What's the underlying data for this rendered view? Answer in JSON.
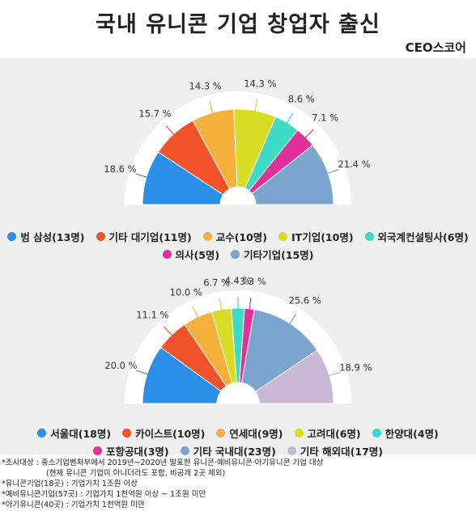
{
  "title": "국내 유니콘 기업 창업자 출신",
  "brand": "CEO스코어",
  "chart_data": [
    {
      "type": "pie",
      "subtype": "semicircle-donut",
      "categories": [
        "범 삼성(13명)",
        "기타 대기업(11명)",
        "교수(10명)",
        "IT기업(10명)",
        "외국계컨설팅사(6명)",
        "의사(5명)",
        "기타기업(15명)"
      ],
      "values": [
        18.6,
        15.7,
        14.3,
        14.3,
        8.6,
        7.1,
        21.4
      ],
      "value_labels": [
        "18.6 %",
        "15.7 %",
        "14.3 %",
        "14.3 %",
        "8.6 %",
        "7.1 %",
        "21.4 %"
      ],
      "colors": [
        "#2b8fe8",
        "#f2522a",
        "#f6b13c",
        "#d9dc25",
        "#3ddbc6",
        "#e0319a",
        "#7ba4cf"
      ],
      "legend_placement": "bottom"
    },
    {
      "type": "pie",
      "subtype": "semicircle-donut",
      "categories": [
        "서울대(18명)",
        "카이스트(10명)",
        "연세대(9명)",
        "고려대(6명)",
        "한양대(4명)",
        "포항공대(3명)",
        "기타 국내대(23명)",
        "기타 해외대(17명)"
      ],
      "values": [
        20.0,
        11.1,
        10.0,
        6.7,
        4.4,
        3.3,
        25.6,
        18.9
      ],
      "value_labels": [
        "20.0 %",
        "11.1 %",
        "10.0 %",
        "6.7 %",
        "4.4 %",
        "3.3 %",
        "25.6 %",
        "18.9 %"
      ],
      "colors": [
        "#2b8fe8",
        "#f2522a",
        "#f6b13c",
        "#d9dc25",
        "#3ddbc6",
        "#e0319a",
        "#7ba4cf",
        "#c8b8d4"
      ],
      "legend_placement": "bottom"
    }
  ],
  "notes": [
    "*조사대상 : 중소기업벤처부에서 2019년~2020년 발표한 유니콘·예비유니콘·아기유니콘 기업 대상",
    "(현재 유니콘 기업이 아니더라도 포함, 비공개 2곳 제외)",
    "*유니콘기업(18곳) : 기업가치 1조원 이상",
    "*예비유니콘기업(57곳) : 기업가치 1천억원 이상 ~ 1조원 미만",
    "*아기유니콘(40곳) : 기업가치 1천억원 미만"
  ]
}
